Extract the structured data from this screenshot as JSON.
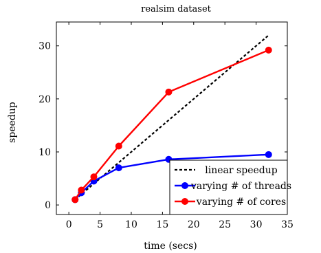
{
  "chart_data": {
    "type": "line",
    "title": "realsim dataset",
    "xlabel": "time (secs)",
    "ylabel": "speedup",
    "xlim": [
      -2,
      35
    ],
    "ylim": [
      -1.8,
      34.5
    ],
    "x_ticks": [
      0,
      5,
      10,
      15,
      20,
      25,
      30,
      35
    ],
    "y_ticks": [
      0,
      10,
      20,
      30
    ],
    "grid": false,
    "legend_position": "bottom-right",
    "series": [
      {
        "name": "linear speedup",
        "color": "#000000",
        "style": "dashed",
        "marker": "none",
        "x": [
          1,
          32
        ],
        "y": [
          1,
          32
        ]
      },
      {
        "name": "varying # of threads",
        "color": "#0000ff",
        "style": "solid",
        "marker": "circle",
        "x": [
          1,
          2,
          4,
          8,
          16,
          32
        ],
        "y": [
          1,
          2.3,
          4.5,
          7.0,
          8.6,
          9.5
        ]
      },
      {
        "name": "varying # of cores",
        "color": "#ff0000",
        "style": "solid",
        "marker": "circle",
        "x": [
          1,
          2,
          4,
          8,
          16,
          32
        ],
        "y": [
          1,
          2.8,
          5.3,
          11.1,
          21.3,
          29.2
        ]
      }
    ]
  }
}
